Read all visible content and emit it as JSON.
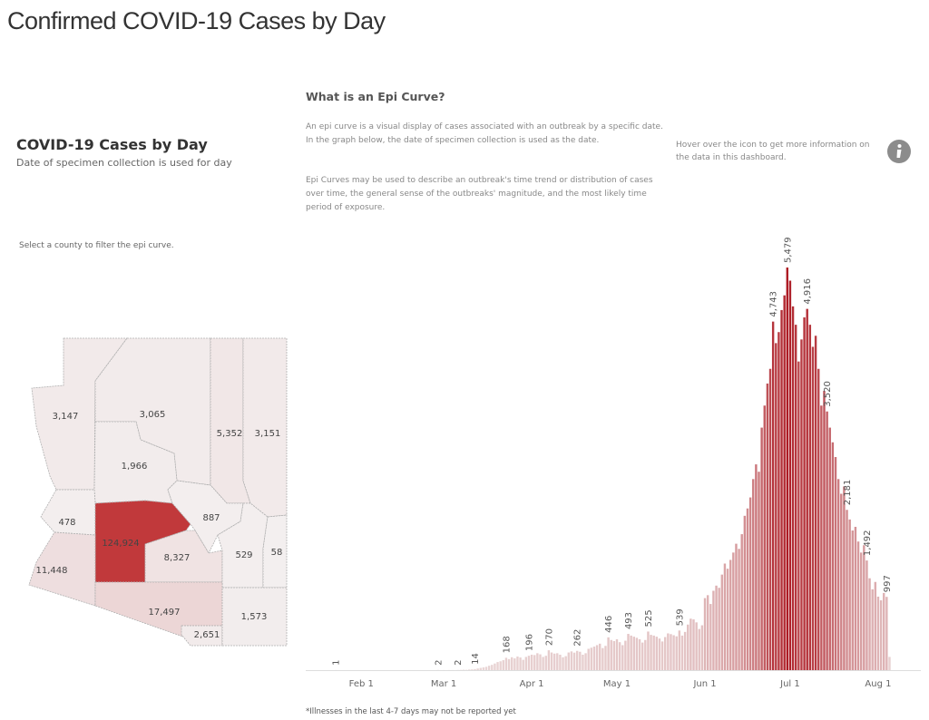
{
  "header": {
    "title": "Confirmed COVID-19 Cases by Day"
  },
  "panel": {
    "title": "COVID-19 Cases by Day",
    "subtitle": "Date of specimen collection is used for day",
    "hint": "Select a county to filter the epi curve."
  },
  "info": {
    "heading": "What is an Epi Curve?",
    "paragraphs": [
      "An epi curve is a visual display of cases associated with an outbreak by a specific date. In the graph below, the date of specimen collection is used as the date.",
      "Epi Curves may be used to describe an outbreak's time trend or distribution of cases over time, the general sense of the outbreaks' magnitude, and the most likely time period of exposure."
    ],
    "hover": "Hover over the icon to get more information on the data in this dashboard."
  },
  "map": {
    "color_low": "#f3efef",
    "color_high": "#c1393b",
    "regions": [
      {
        "value": 3147,
        "label": "3,147"
      },
      {
        "value": 3065,
        "label": "3,065"
      },
      {
        "value": 5352,
        "label": "5,352"
      },
      {
        "value": 3151,
        "label": "3,151"
      },
      {
        "value": 1966,
        "label": "1,966"
      },
      {
        "value": 478,
        "label": "478"
      },
      {
        "value": 124924,
        "label": "124,924"
      },
      {
        "value": 887,
        "label": "887"
      },
      {
        "value": 8327,
        "label": "8,327"
      },
      {
        "value": 529,
        "label": "529"
      },
      {
        "value": 58,
        "label": "58"
      },
      {
        "value": 11448,
        "label": "11,448"
      },
      {
        "value": 17497,
        "label": "17,497"
      },
      {
        "value": 2651,
        "label": "2,651"
      },
      {
        "value": 1573,
        "label": "1,573"
      }
    ]
  },
  "chart_data": {
    "type": "bar",
    "color_low": "#e9d6d6",
    "color_high": "#ad1b24",
    "categories": [
      null,
      null,
      null,
      null,
      null,
      null,
      null,
      null,
      null,
      null,
      "Feb 1",
      null,
      null,
      null,
      null,
      null,
      null,
      null,
      null,
      null,
      null,
      null,
      null,
      null,
      null,
      null,
      null,
      null,
      null,
      null,
      null,
      null,
      null,
      null,
      null,
      null,
      null,
      null,
      null,
      "Mar 1",
      null,
      null,
      null,
      null,
      null,
      null,
      null,
      null,
      null,
      null,
      null,
      null,
      null,
      null,
      null,
      null,
      null,
      null,
      null,
      null,
      null,
      null,
      null,
      null,
      null,
      null,
      null,
      null,
      null,
      null,
      "Apr 1",
      null,
      null,
      null,
      null,
      null,
      null,
      null,
      null,
      null,
      null,
      null,
      null,
      null,
      null,
      null,
      null,
      null,
      null,
      null,
      null,
      null,
      null,
      null,
      null,
      null,
      null,
      null,
      null,
      null,
      "May 1",
      null,
      null,
      null,
      null,
      null,
      null,
      null,
      null,
      null,
      null,
      null,
      null,
      null,
      null,
      null,
      null,
      null,
      null,
      null,
      null,
      null,
      null,
      null,
      null,
      null,
      null,
      null,
      null,
      null,
      null,
      "Jun 1",
      null,
      null,
      null,
      null,
      null,
      null,
      null,
      null,
      null,
      null,
      null,
      null,
      null,
      null,
      null,
      null,
      null,
      null,
      null,
      null,
      null,
      null,
      null,
      null,
      null,
      null,
      null,
      null,
      null,
      "Jul 1",
      null,
      null,
      null,
      null,
      null,
      null,
      null,
      null,
      null,
      null,
      null,
      null,
      null,
      null,
      null,
      null,
      null,
      null,
      null,
      null,
      null,
      null,
      null,
      null,
      null,
      null,
      null,
      null,
      null,
      null,
      "Aug 1",
      null,
      null,
      null,
      null
    ],
    "values": [
      0,
      1,
      0,
      0,
      0,
      0,
      0,
      0,
      0,
      0,
      0,
      0,
      0,
      0,
      0,
      0,
      0,
      0,
      0,
      0,
      0,
      0,
      0,
      0,
      0,
      0,
      0,
      0,
      0,
      0,
      0,
      0,
      0,
      0,
      0,
      0,
      0,
      2,
      0,
      1,
      0,
      1,
      1,
      0,
      2,
      3,
      5,
      4,
      8,
      10,
      14,
      22,
      30,
      38,
      45,
      60,
      72,
      90,
      110,
      120,
      135,
      168,
      150,
      175,
      160,
      185,
      172,
      140,
      180,
      196,
      210,
      205,
      230,
      215,
      180,
      195,
      270,
      240,
      225,
      230,
      210,
      175,
      190,
      240,
      255,
      238,
      262,
      250,
      210,
      230,
      290,
      305,
      320,
      340,
      360,
      300,
      330,
      446,
      410,
      395,
      420,
      380,
      340,
      400,
      493,
      470,
      455,
      440,
      420,
      375,
      410,
      525,
      480,
      470,
      455,
      430,
      390,
      450,
      500,
      490,
      475,
      460,
      539,
      470,
      520,
      620,
      700,
      690,
      650,
      560,
      610,
      980,
      1020,
      900,
      1080,
      1150,
      1120,
      1300,
      1450,
      1380,
      1500,
      1600,
      1720,
      1650,
      1850,
      2100,
      2200,
      2350,
      2600,
      2800,
      2700,
      3300,
      3600,
      3900,
      4100,
      4743,
      4450,
      4600,
      4900,
      5100,
      5479,
      5300,
      4950,
      4700,
      4200,
      4500,
      4800,
      4916,
      4700,
      4400,
      4550,
      4100,
      3600,
      3800,
      3520,
      3300,
      3100,
      2900,
      2600,
      2400,
      2500,
      2181,
      2050,
      1900,
      1950,
      1750,
      1600,
      1700,
      1492,
      1250,
      1100,
      1200,
      1000,
      950,
      1050,
      997,
      180
    ],
    "value_labels": [
      null,
      "1",
      null,
      null,
      null,
      null,
      null,
      null,
      null,
      null,
      null,
      null,
      null,
      null,
      null,
      null,
      null,
      null,
      null,
      null,
      null,
      null,
      null,
      null,
      null,
      null,
      null,
      null,
      null,
      null,
      null,
      null,
      null,
      null,
      null,
      null,
      null,
      "2",
      null,
      null,
      null,
      null,
      null,
      null,
      "2",
      null,
      null,
      null,
      null,
      null,
      "14",
      null,
      null,
      null,
      null,
      null,
      null,
      null,
      null,
      null,
      null,
      "168",
      null,
      null,
      null,
      null,
      null,
      null,
      null,
      "196",
      null,
      null,
      null,
      null,
      null,
      null,
      "270",
      null,
      null,
      null,
      null,
      null,
      null,
      null,
      null,
      null,
      "262",
      null,
      null,
      null,
      null,
      null,
      null,
      null,
      null,
      null,
      null,
      "446",
      null,
      null,
      null,
      null,
      null,
      null,
      "493",
      null,
      null,
      null,
      null,
      null,
      null,
      "525",
      null,
      null,
      null,
      null,
      null,
      null,
      null,
      null,
      null,
      null,
      "539",
      null,
      null,
      null,
      null,
      null,
      null,
      null,
      null,
      null,
      null,
      null,
      null,
      null,
      null,
      null,
      null,
      null,
      null,
      null,
      null,
      null,
      null,
      null,
      null,
      null,
      null,
      null,
      null,
      null,
      null,
      null,
      null,
      "4,743",
      null,
      null,
      null,
      null,
      "5,479",
      null,
      null,
      null,
      null,
      null,
      null,
      "4,916",
      null,
      null,
      null,
      null,
      null,
      null,
      "3,520",
      null,
      null,
      null,
      null,
      null,
      null,
      "2,181",
      null,
      null,
      null,
      null,
      null,
      null,
      "1,492",
      null,
      null,
      null,
      null,
      null,
      null,
      "997",
      null
    ]
  },
  "footnote": "*Illnesses in the last 4-7 days may not be reported yet"
}
